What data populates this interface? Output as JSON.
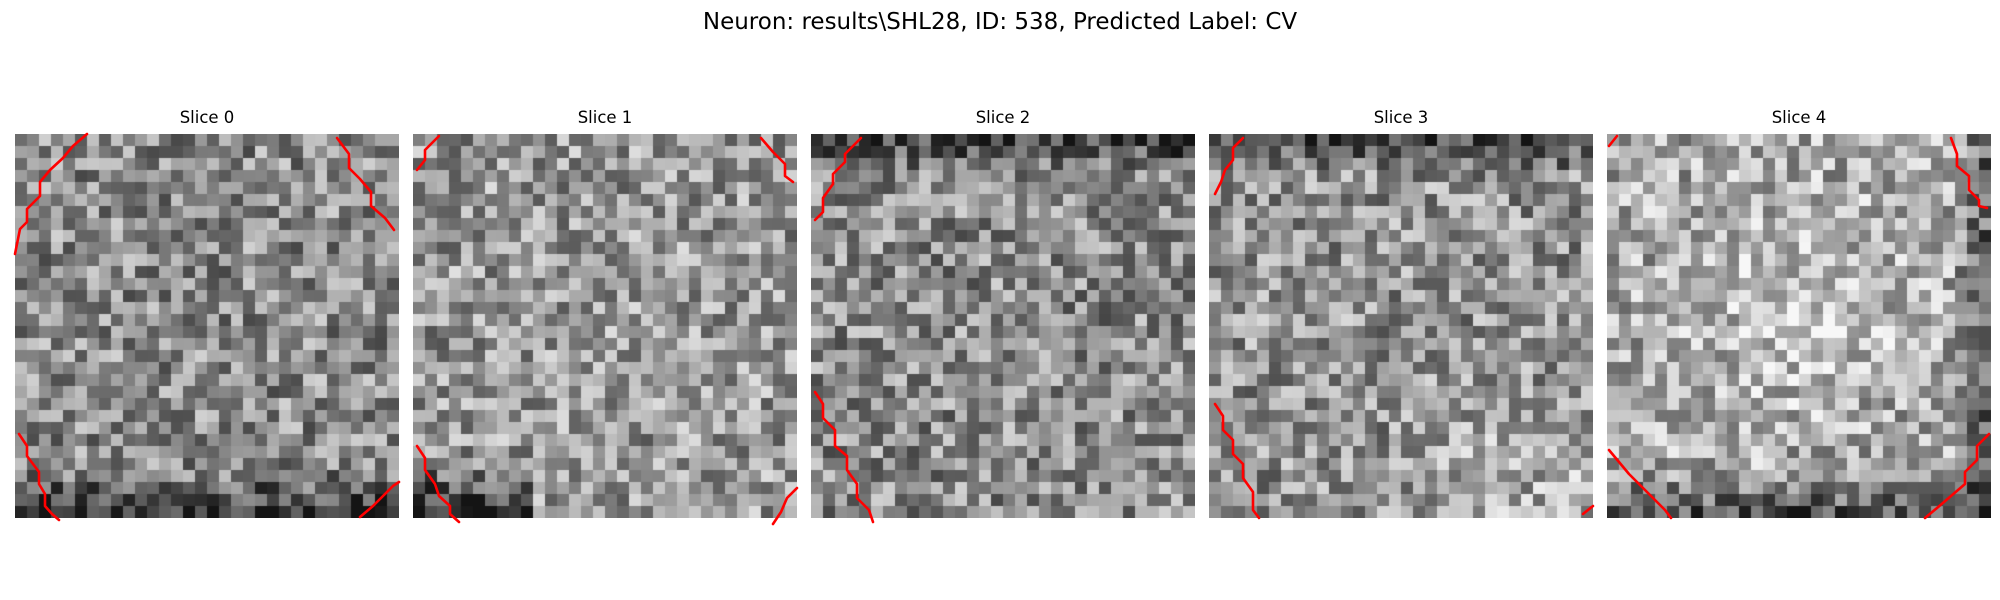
{
  "figure": {
    "title": "Neuron: results\\SHL28, ID: 538, Predicted Label: CV"
  },
  "colors": {
    "background": "#ffffff",
    "contour": "#ff0000",
    "colormap": "gray"
  },
  "image_grid_size": 32,
  "slices": [
    {
      "title": "Slice 0",
      "seed": 101,
      "mean": 0.55,
      "dark_edges": [
        "bottom"
      ],
      "light_edges": []
    },
    {
      "title": "Slice 1",
      "seed": 202,
      "mean": 0.6,
      "dark_edges": [
        "bottom-left"
      ],
      "light_edges": []
    },
    {
      "title": "Slice 2",
      "seed": 303,
      "mean": 0.55,
      "dark_edges": [
        "top"
      ],
      "light_edges": []
    },
    {
      "title": "Slice 3",
      "seed": 404,
      "mean": 0.58,
      "dark_edges": [
        "top"
      ],
      "light_edges": [
        "bottom-right"
      ]
    },
    {
      "title": "Slice 4",
      "seed": 505,
      "mean": 0.66,
      "dark_edges": [
        "bottom",
        "right"
      ],
      "light_edges": [
        "center"
      ]
    }
  ]
}
